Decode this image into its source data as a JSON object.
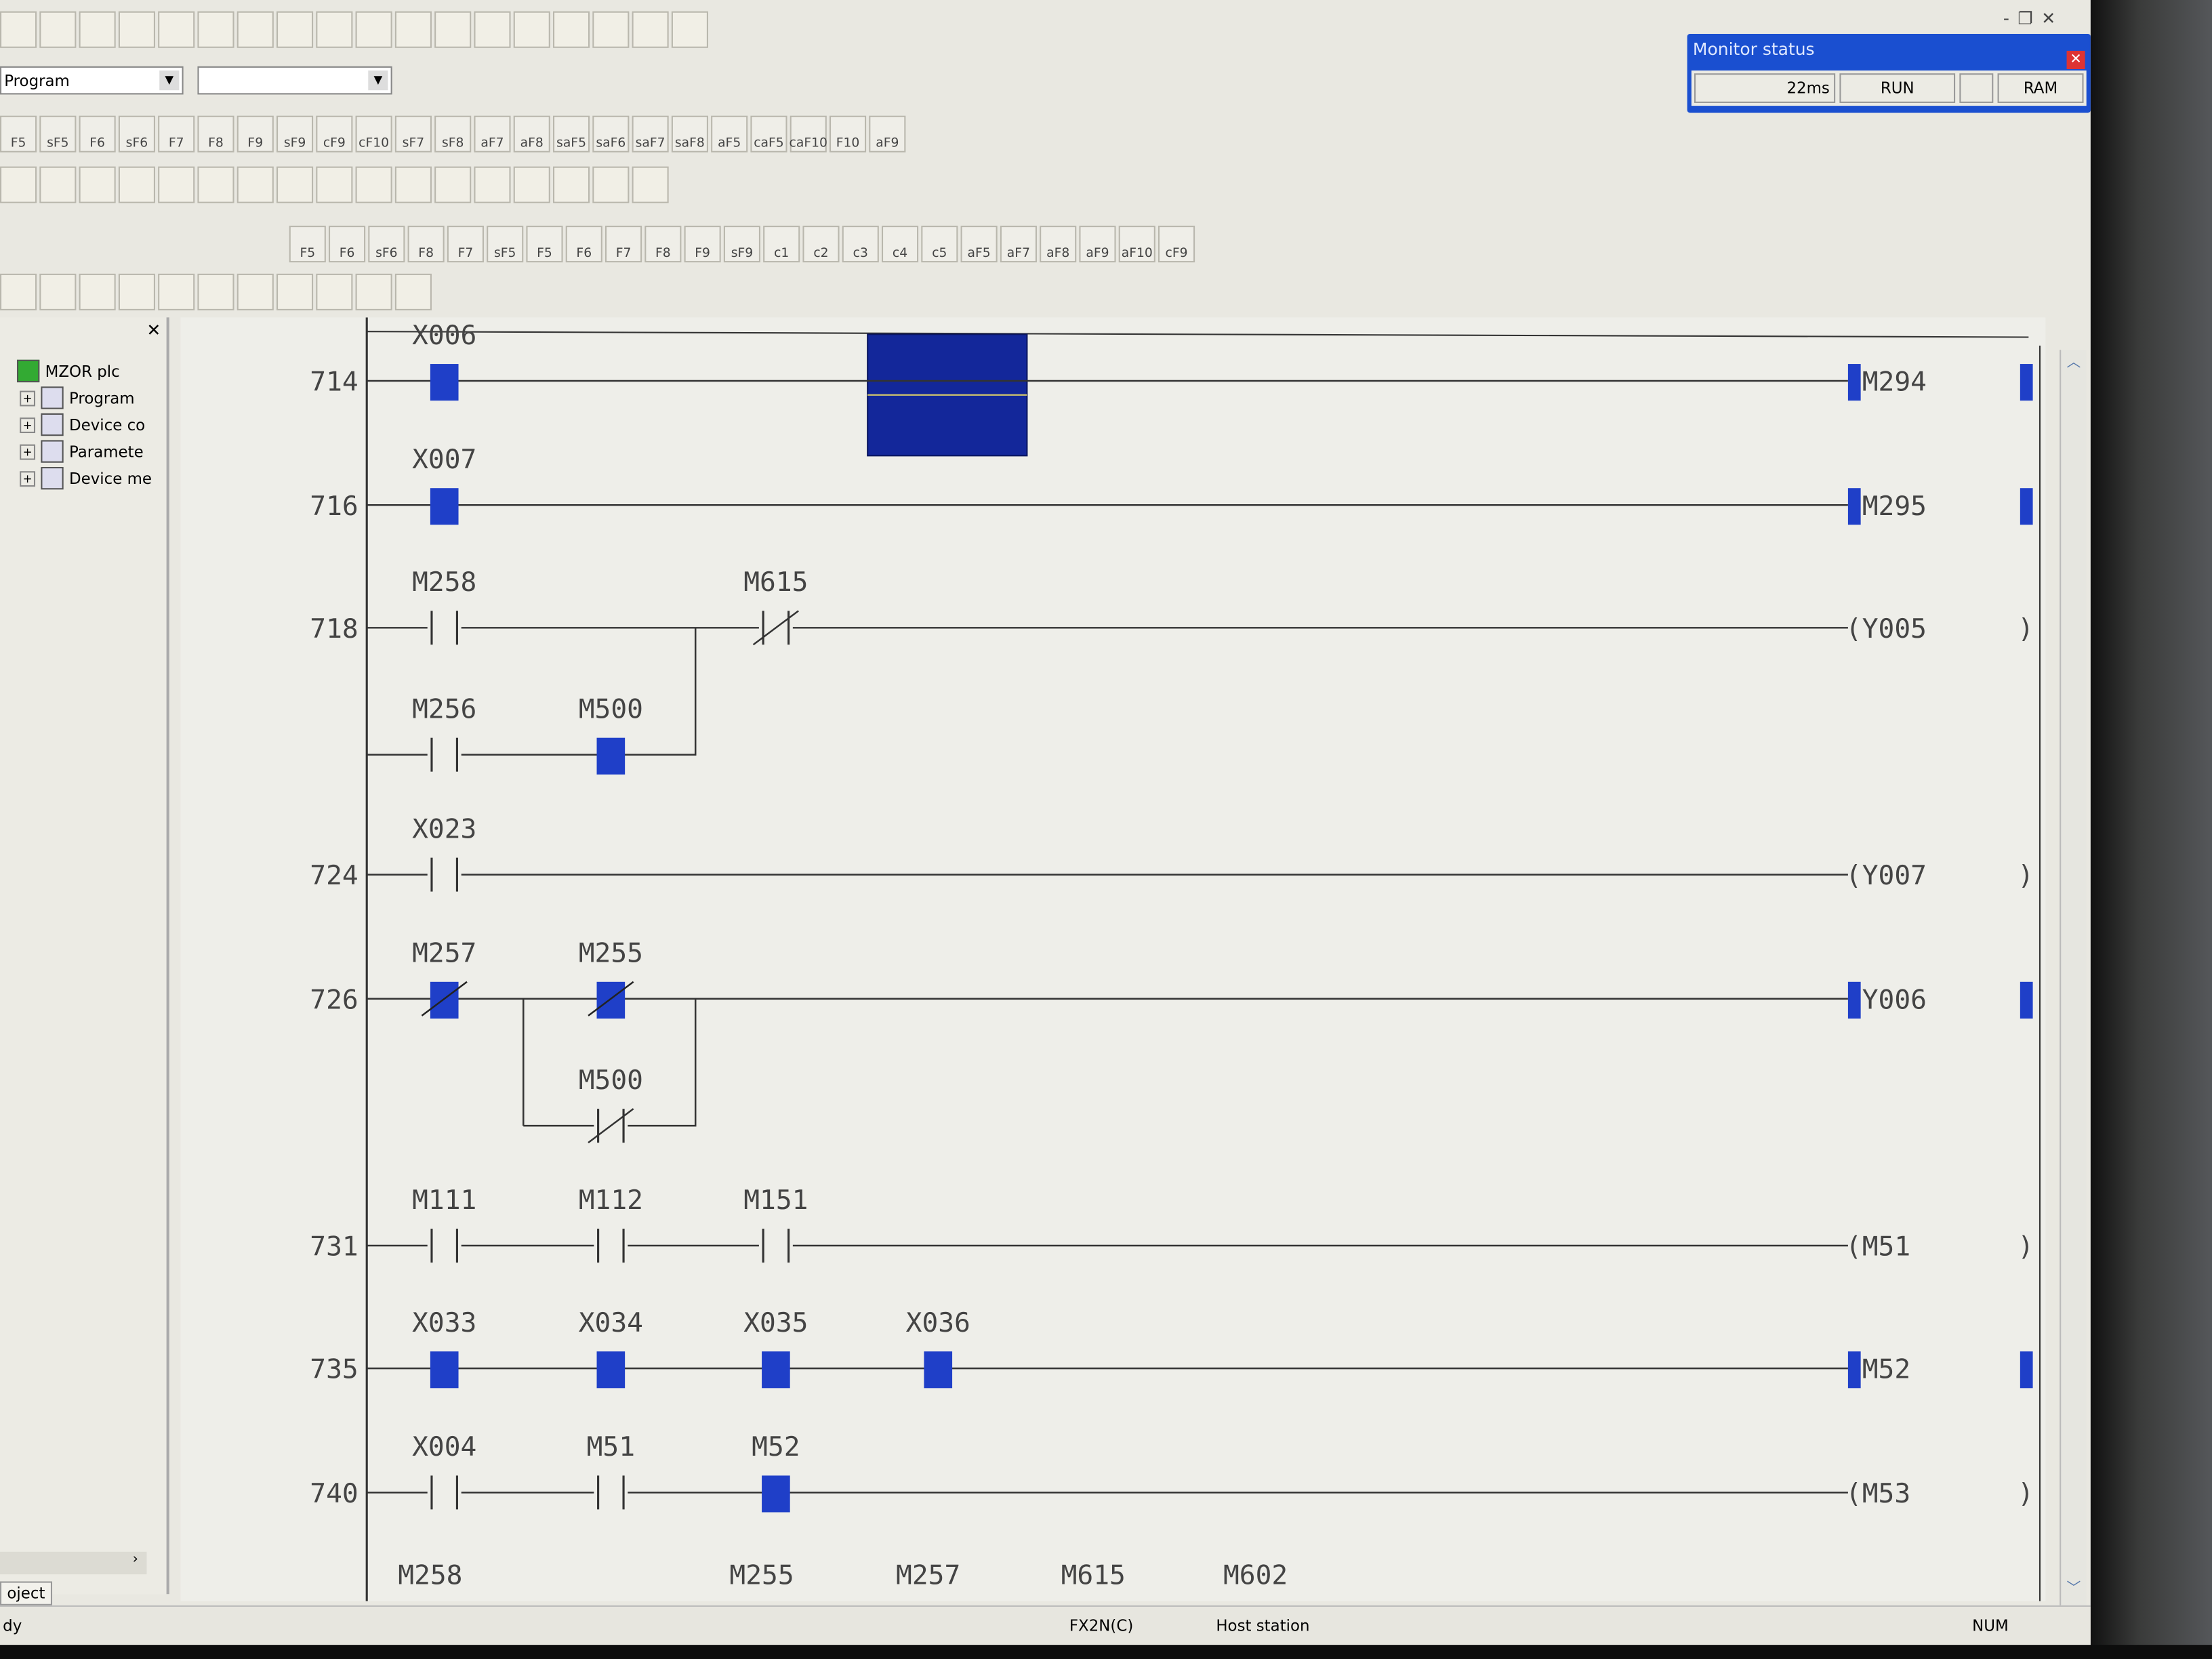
{
  "window": {
    "controls": [
      "-",
      "❐",
      "✕"
    ]
  },
  "toolbar": {
    "row1_icons": [
      "new",
      "open",
      "save",
      "print",
      "cut",
      "copy",
      "paste",
      "undo",
      "redo",
      "find",
      "find-device",
      "find-instruction",
      "write",
      "read",
      "zoom-in",
      "zoom-out",
      "monitor",
      "monitor-start"
    ],
    "program_select": "Program",
    "row3_keys": [
      "F5",
      "sF5",
      "F6",
      "sF6",
      "F7",
      "F8",
      "F9",
      "sF9",
      "cF9",
      "cF10",
      "sF7",
      "sF8",
      "aF7",
      "aF8",
      "saF5",
      "saF6",
      "saF7",
      "saF8",
      "aF5",
      "caF5",
      "caF10",
      "F10",
      "aF9"
    ],
    "row5_keys": [
      "F5",
      "F6",
      "sF6",
      "F8",
      "F7",
      "sF5",
      "F5",
      "F6",
      "F7",
      "F8",
      "F9",
      "sF9",
      "c1",
      "c2",
      "c3",
      "c4",
      "c5",
      "aF5",
      "aF7",
      "aF8",
      "aF9",
      "aF10",
      "cF9"
    ]
  },
  "monitor_status": {
    "title": "Monitor status",
    "scan_time": "22ms",
    "mode": "RUN",
    "blank": "",
    "memory": "RAM"
  },
  "project_tree": {
    "root": "MZOR plc",
    "items": [
      "Program",
      "Device co",
      "Paramete",
      "Device me"
    ],
    "tab": "oject",
    "close": "✕"
  },
  "ladder": {
    "rungs": [
      {
        "step": "714",
        "contacts": [
          {
            "label": "X006",
            "type": "on",
            "col": 0,
            "row": 0
          }
        ],
        "coil": {
          "label": "M294",
          "on": true
        }
      },
      {
        "step": "716",
        "contacts": [
          {
            "label": "X007",
            "type": "on",
            "col": 0,
            "row": 0
          }
        ],
        "coil": {
          "label": "M295",
          "on": true
        }
      },
      {
        "step": "718",
        "contacts": [
          {
            "label": "M258",
            "type": "no",
            "col": 0,
            "row": 0
          },
          {
            "label": "M615",
            "type": "nc",
            "col": 2,
            "row": 0
          },
          {
            "label": "M256",
            "type": "no",
            "col": 0,
            "row": 1
          },
          {
            "label": "M500",
            "type": "on",
            "col": 1,
            "row": 1
          }
        ],
        "branch": {
          "from": 0,
          "to": 1
        },
        "coil": {
          "label": "Y005",
          "on": false
        }
      },
      {
        "step": "724",
        "contacts": [
          {
            "label": "X023",
            "type": "no",
            "col": 0,
            "row": 0
          }
        ],
        "coil": {
          "label": "Y007",
          "on": false
        }
      },
      {
        "step": "726",
        "contacts": [
          {
            "label": "M257",
            "type": "on_nc",
            "col": 0,
            "row": 0
          },
          {
            "label": "M255",
            "type": "on_nc",
            "col": 1,
            "row": 0
          },
          {
            "label": "M500",
            "type": "nc",
            "col": 1,
            "row": 1
          }
        ],
        "branch": {
          "from": 1,
          "to": 1
        },
        "coil": {
          "label": "Y006",
          "on": true
        }
      },
      {
        "step": "731",
        "contacts": [
          {
            "label": "M111",
            "type": "no",
            "col": 0,
            "row": 0
          },
          {
            "label": "M112",
            "type": "no",
            "col": 1,
            "row": 0
          },
          {
            "label": "M151",
            "type": "no",
            "col": 2,
            "row": 0
          }
        ],
        "coil": {
          "label": "M51",
          "on": false
        }
      },
      {
        "step": "735",
        "contacts": [
          {
            "label": "X033",
            "type": "on",
            "col": 0,
            "row": 0
          },
          {
            "label": "X034",
            "type": "on",
            "col": 1,
            "row": 0
          },
          {
            "label": "X035",
            "type": "on",
            "col": 2,
            "row": 0
          },
          {
            "label": "X036",
            "type": "on",
            "col": 3,
            "row": 0
          }
        ],
        "coil": {
          "label": "M52",
          "on": true
        }
      },
      {
        "step": "740",
        "contacts": [
          {
            "label": "X004",
            "type": "no",
            "col": 0,
            "row": 0
          },
          {
            "label": "M51",
            "type": "no",
            "col": 1,
            "row": 0
          },
          {
            "label": "M52",
            "type": "on",
            "col": 2,
            "row": 0
          }
        ],
        "coil": {
          "label": "M53",
          "on": false
        }
      }
    ],
    "partial_row": [
      "M258",
      "M255",
      "M257",
      "M615",
      "M602"
    ]
  },
  "statusbar": {
    "cpu": "FX2N(C)",
    "station": "Host station",
    "num": "NUM",
    "left": "dy"
  },
  "colors": {
    "active": "#1f3fc8",
    "cursor": "#13279a",
    "line": "#333333",
    "title_bar": "#1a4fd0"
  }
}
